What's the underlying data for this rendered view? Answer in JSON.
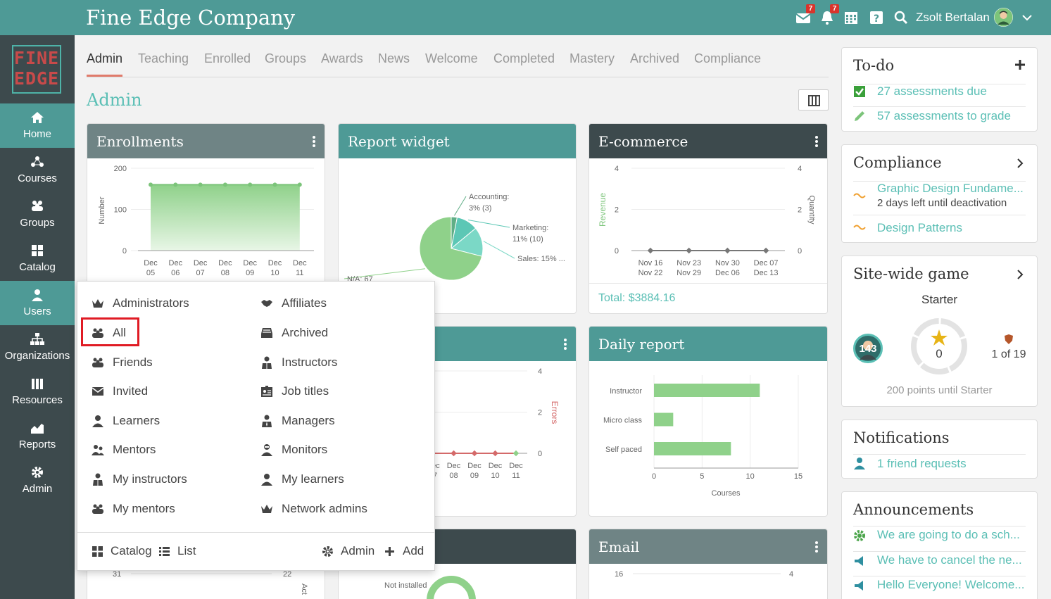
{
  "app": {
    "title": "Fine Edge Company",
    "logo_line1": "FINE",
    "logo_line2": "EDGE"
  },
  "topbar": {
    "messages_badge": "7",
    "notifications_badge": "7",
    "user_name": "Zsolt Bertalan"
  },
  "sidebar": {
    "items": [
      {
        "label": "Home",
        "icon": "home-icon"
      },
      {
        "label": "Courses",
        "icon": "courses-icon"
      },
      {
        "label": "Groups",
        "icon": "groups-icon"
      },
      {
        "label": "Catalog",
        "icon": "catalog-icon"
      },
      {
        "label": "Users",
        "icon": "user-icon"
      },
      {
        "label": "Organizations",
        "icon": "organizations-icon"
      },
      {
        "label": "Resources",
        "icon": "resources-icon"
      },
      {
        "label": "Reports",
        "icon": "reports-icon"
      },
      {
        "label": "Admin",
        "icon": "gear-icon"
      }
    ]
  },
  "tabs": [
    "Admin",
    "Teaching",
    "Enrolled",
    "Groups",
    "Awards",
    "News",
    "Welcome",
    "Completed",
    "Mastery",
    "Archived",
    "Compliance"
  ],
  "page_title": "Admin",
  "widgets": {
    "enrollments": {
      "title": "Enrollments"
    },
    "report": {
      "title": "Report widget"
    },
    "ecommerce": {
      "title": "E-commerce",
      "total": "Total: $3884.16"
    },
    "daily": {
      "title": "Daily report"
    },
    "email": {
      "title": "Email"
    }
  },
  "chart_data": [
    {
      "type": "area",
      "title": "Enrollments",
      "ylabel": "Number",
      "ylim": [
        0,
        200
      ],
      "yticks": [
        "200",
        "100",
        "0"
      ],
      "categories": [
        [
          "Dec",
          "05"
        ],
        [
          "Dec",
          "06"
        ],
        [
          "Dec",
          "07"
        ],
        [
          "Dec",
          "08"
        ],
        [
          "Dec",
          "09"
        ],
        [
          "Dec",
          "10"
        ],
        [
          "Dec",
          "11"
        ]
      ],
      "values": [
        160,
        160,
        160,
        160,
        160,
        160,
        160
      ]
    },
    {
      "type": "pie",
      "title": "Report widget",
      "slices": [
        {
          "label": "Accounting:",
          "sub": "3% (3)",
          "value": 3,
          "color": "#5fae86"
        },
        {
          "label": "Marketing:",
          "sub": "11% (10)",
          "value": 11,
          "color": "#5cc7b5"
        },
        {
          "label": "Sales: 15% ...",
          "sub": "",
          "value": 15,
          "color": "#7bd8c6"
        },
        {
          "label": "N/A: 67",
          "sub": "",
          "value": 71,
          "color": "#8fd18a"
        }
      ]
    },
    {
      "type": "line",
      "title": "E-commerce",
      "ylabel": "Revenue",
      "y2label": "Quantity",
      "ylim": [
        0,
        4
      ],
      "yticks": [
        "4",
        "2",
        "0"
      ],
      "categories": [
        [
          "Nov 16",
          "Nov 22"
        ],
        [
          "Nov 23",
          "Nov 29"
        ],
        [
          "Nov 30",
          "Dec 06"
        ],
        [
          "Dec 07",
          "Dec 13"
        ]
      ],
      "values": [
        0,
        0,
        0,
        0
      ]
    },
    {
      "type": "line",
      "y2label": "Errors",
      "yticks": [
        "4",
        "2",
        "0"
      ],
      "categories": [
        [
          "Dec",
          "07"
        ],
        [
          "Dec",
          "08"
        ],
        [
          "Dec",
          "09"
        ],
        [
          "Dec",
          "10"
        ],
        [
          "Dec",
          "11"
        ]
      ],
      "values": [
        0,
        0,
        0,
        0,
        0
      ]
    },
    {
      "type": "bar",
      "title": "Daily report",
      "orientation": "horizontal",
      "xlabel": "Courses",
      "xlim": [
        0,
        15
      ],
      "xticks": [
        "0",
        "5",
        "10",
        "15"
      ],
      "categories": [
        "Instructor",
        "Micro class",
        "Self paced"
      ],
      "values": [
        11,
        2,
        8
      ]
    }
  ],
  "partial_labels": {
    "left_axis_31": "31",
    "left_axis_22": "22",
    "left_axis_act": "Act",
    "not_installed": "Not installed",
    "email_axis_16": "16",
    "email_axis_4": "4"
  },
  "todo": {
    "title": "To-do",
    "items": [
      "27 assessments due",
      "57 assessments to grade"
    ]
  },
  "compliance": {
    "title": "Compliance",
    "items": [
      {
        "title": "Graphic Design Fundame...",
        "sub": "2 days left until deactivation"
      },
      {
        "title": "Design Patterns",
        "sub": ""
      }
    ]
  },
  "game": {
    "title": "Site-wide game",
    "level": "Starter",
    "points": "143",
    "progress_value": "0",
    "progress_fraction": 0.0,
    "rank": "1 of 19",
    "footer": "200 points until Starter"
  },
  "notifications": {
    "title": "Notifications",
    "items": [
      "1 friend requests"
    ]
  },
  "announcements": {
    "title": "Announcements",
    "items": [
      "We are going to do a sch...",
      "We have to cancel the ne...",
      "Hello Everyone! Welcome..."
    ]
  },
  "dropdown": {
    "left": [
      "Administrators",
      "All",
      "Friends",
      "Invited",
      "Learners",
      "Mentors",
      "My instructors",
      "My mentors"
    ],
    "right": [
      "Affiliates",
      "Archived",
      "Instructors",
      "Job titles",
      "Managers",
      "Monitors",
      "My learners",
      "Network admins"
    ],
    "footer": {
      "catalog": "Catalog",
      "list": "List",
      "admin": "Admin",
      "add": "Add"
    }
  }
}
